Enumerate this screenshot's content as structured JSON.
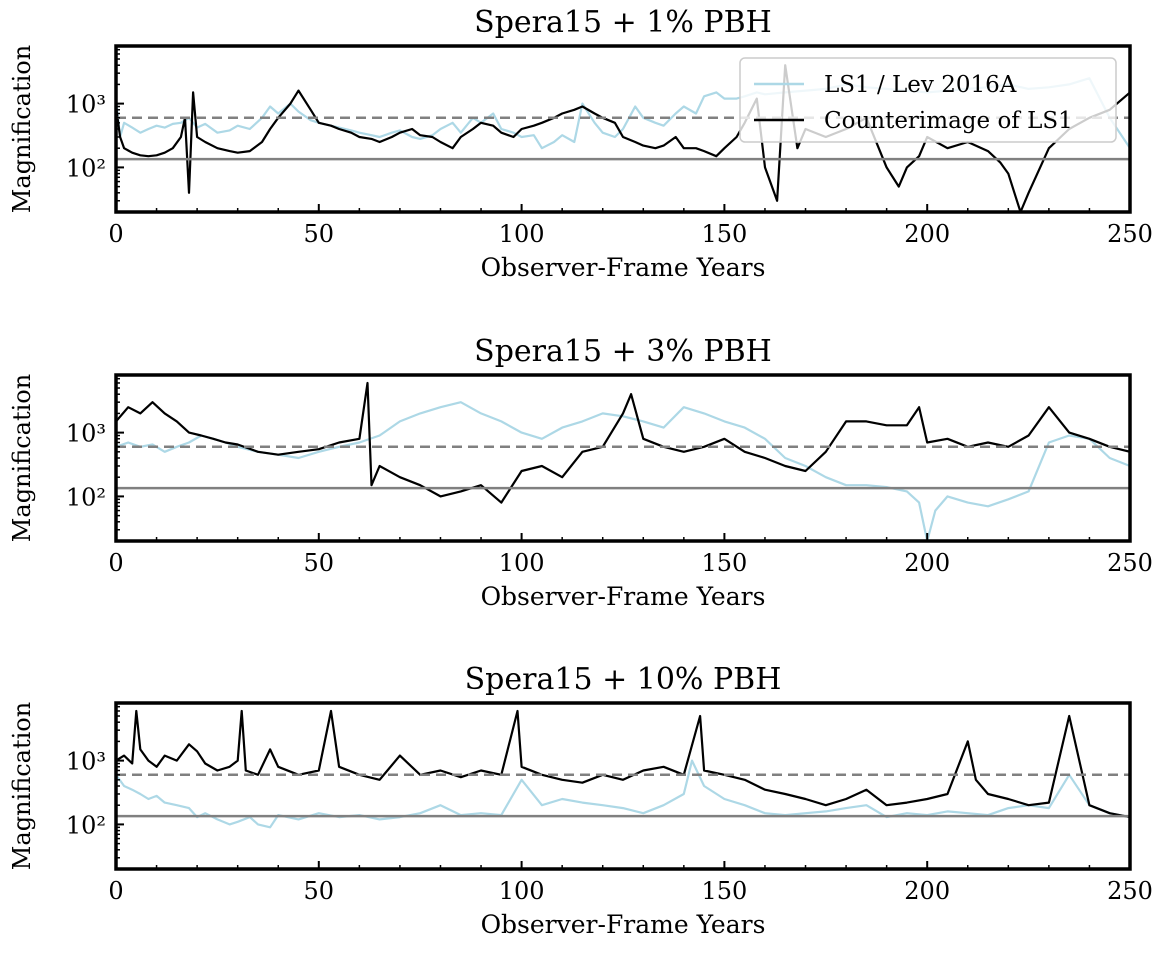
{
  "chart_data": [
    {
      "type": "line",
      "title": "Spera15 + 1% PBH",
      "xlabel": "Observer-Frame Years",
      "ylabel": "Magnification",
      "xlim": [
        0,
        250
      ],
      "ylim": [
        20,
        8000
      ],
      "yscale": "log",
      "xticks": [
        "0",
        "50",
        "100",
        "150",
        "200",
        "250"
      ],
      "yticks": [
        "10²",
        "10³"
      ],
      "hlines": [
        {
          "y": 135,
          "style": "solid",
          "color": "#808080"
        },
        {
          "y": 600,
          "style": "dashed",
          "color": "#808080"
        }
      ],
      "legend": {
        "placement": "top-right",
        "entries": [
          "LS1 / Lev 2016A",
          "Counterimage of LS1"
        ]
      },
      "series": [
        {
          "name": "LS1 / Lev 2016A",
          "color": "#add8e6",
          "x": [
            0,
            1,
            2,
            4,
            6,
            8,
            10,
            12,
            14,
            16,
            18,
            20,
            22,
            25,
            28,
            30,
            33,
            36,
            38,
            40,
            43,
            45,
            48,
            50,
            53,
            55,
            58,
            60,
            63,
            65,
            68,
            70,
            73,
            75,
            78,
            80,
            83,
            85,
            88,
            90,
            93,
            95,
            98,
            100,
            103,
            105,
            108,
            110,
            113,
            115,
            118,
            120,
            123,
            125,
            128,
            130,
            133,
            135,
            138,
            140,
            143,
            145,
            148,
            150,
            153,
            155,
            158,
            160,
            165,
            170,
            175,
            180,
            185,
            190,
            195,
            200,
            205,
            210,
            215,
            220,
            225,
            230,
            235,
            240,
            245,
            250
          ],
          "y": [
            1200,
            300,
            500,
            420,
            350,
            400,
            450,
            420,
            480,
            500,
            600,
            420,
            480,
            350,
            380,
            450,
            400,
            600,
            900,
            700,
            1000,
            750,
            550,
            500,
            450,
            420,
            380,
            350,
            320,
            300,
            350,
            380,
            300,
            280,
            320,
            400,
            500,
            350,
            600,
            500,
            700,
            400,
            350,
            300,
            320,
            200,
            250,
            320,
            250,
            1000,
            500,
            350,
            300,
            400,
            900,
            600,
            500,
            450,
            700,
            900,
            700,
            1300,
            1500,
            1200,
            1200,
            1300,
            1500,
            1400,
            1500,
            1600,
            1700,
            2000,
            1800,
            1700,
            1600,
            1500,
            1600,
            1700,
            1800,
            2000,
            1700,
            1800,
            2000,
            2500,
            600,
            200
          ]
        },
        {
          "name": "Counterimage of LS1",
          "color": "#000000",
          "x": [
            0,
            1,
            2,
            4,
            6,
            8,
            10,
            12,
            14,
            16,
            17,
            18,
            19,
            20,
            22,
            25,
            28,
            30,
            33,
            36,
            38,
            40,
            43,
            45,
            48,
            50,
            53,
            55,
            58,
            60,
            63,
            65,
            68,
            70,
            73,
            75,
            78,
            80,
            83,
            85,
            88,
            90,
            93,
            95,
            98,
            100,
            103,
            105,
            108,
            110,
            113,
            115,
            118,
            120,
            123,
            125,
            128,
            130,
            133,
            135,
            138,
            140,
            143,
            145,
            148,
            150,
            153,
            155,
            158,
            160,
            163,
            165,
            168,
            170,
            175,
            180,
            185,
            190,
            193,
            195,
            198,
            200,
            205,
            210,
            215,
            218,
            220,
            223,
            225,
            230,
            235,
            240,
            245,
            250
          ],
          "y": [
            900,
            300,
            200,
            170,
            155,
            150,
            155,
            170,
            200,
            300,
            600,
            40,
            1500,
            300,
            250,
            200,
            180,
            170,
            180,
            250,
            400,
            600,
            1000,
            1600,
            800,
            500,
            450,
            400,
            350,
            300,
            280,
            250,
            300,
            350,
            400,
            320,
            300,
            250,
            200,
            300,
            400,
            500,
            450,
            350,
            300,
            400,
            450,
            500,
            600,
            700,
            800,
            900,
            700,
            600,
            500,
            300,
            250,
            220,
            200,
            220,
            300,
            200,
            200,
            180,
            150,
            200,
            300,
            500,
            1200,
            100,
            30,
            4000,
            200,
            400,
            300,
            400,
            600,
            100,
            50,
            100,
            150,
            300,
            200,
            250,
            180,
            120,
            80,
            20,
            40,
            200,
            400,
            600,
            800,
            1500
          ]
        }
      ]
    },
    {
      "type": "line",
      "title": "Spera15 + 3% PBH",
      "xlabel": "Observer-Frame Years",
      "ylabel": "Magnification",
      "xlim": [
        0,
        250
      ],
      "ylim": [
        20,
        8000
      ],
      "yscale": "log",
      "xticks": [
        "0",
        "50",
        "100",
        "150",
        "200",
        "250"
      ],
      "yticks": [
        "10²",
        "10³"
      ],
      "hlines": [
        {
          "y": 135,
          "style": "solid",
          "color": "#808080"
        },
        {
          "y": 600,
          "style": "dashed",
          "color": "#808080"
        }
      ],
      "series": [
        {
          "name": "LS1 / Lev 2016A",
          "color": "#add8e6",
          "x": [
            0,
            3,
            6,
            9,
            12,
            15,
            18,
            21,
            24,
            27,
            30,
            35,
            40,
            45,
            50,
            55,
            60,
            65,
            70,
            75,
            80,
            85,
            90,
            95,
            100,
            105,
            110,
            115,
            120,
            125,
            130,
            135,
            140,
            145,
            150,
            155,
            160,
            165,
            170,
            175,
            180,
            185,
            190,
            195,
            198,
            200,
            202,
            205,
            210,
            215,
            220,
            225,
            230,
            235,
            240,
            245,
            250
          ],
          "y": [
            600,
            700,
            600,
            650,
            500,
            600,
            700,
            900,
            800,
            700,
            600,
            500,
            450,
            400,
            500,
            600,
            700,
            900,
            1500,
            2000,
            2500,
            3000,
            2000,
            1500,
            1000,
            800,
            1200,
            1500,
            2000,
            1800,
            1500,
            1200,
            2500,
            2000,
            1500,
            1200,
            800,
            400,
            300,
            200,
            150,
            150,
            140,
            120,
            80,
            20,
            60,
            100,
            80,
            70,
            90,
            120,
            700,
            900,
            800,
            400,
            300
          ]
        },
        {
          "name": "Counterimage of LS1",
          "color": "#000000",
          "x": [
            0,
            3,
            6,
            9,
            12,
            15,
            18,
            21,
            24,
            27,
            30,
            35,
            40,
            45,
            50,
            55,
            60,
            62,
            63,
            65,
            70,
            75,
            80,
            85,
            90,
            95,
            100,
            105,
            110,
            115,
            120,
            125,
            127,
            130,
            135,
            140,
            145,
            150,
            155,
            160,
            165,
            170,
            175,
            180,
            185,
            190,
            195,
            198,
            200,
            205,
            210,
            215,
            220,
            225,
            230,
            235,
            240,
            245,
            250
          ],
          "y": [
            1500,
            2500,
            2000,
            3000,
            2000,
            1500,
            1000,
            900,
            800,
            700,
            650,
            500,
            450,
            500,
            550,
            700,
            800,
            6000,
            150,
            300,
            200,
            150,
            100,
            120,
            150,
            80,
            250,
            300,
            200,
            500,
            600,
            2000,
            4000,
            800,
            600,
            500,
            600,
            800,
            500,
            400,
            300,
            250,
            500,
            1500,
            1500,
            1300,
            1300,
            2500,
            700,
            800,
            600,
            700,
            600,
            900,
            2500,
            1000,
            800,
            600,
            500
          ]
        }
      ]
    },
    {
      "type": "line",
      "title": "Spera15 + 10% PBH",
      "xlabel": "Observer-Frame Years",
      "ylabel": "Magnification",
      "xlim": [
        0,
        250
      ],
      "ylim": [
        20,
        8000
      ],
      "yscale": "log",
      "xticks": [
        "0",
        "50",
        "100",
        "150",
        "200",
        "250"
      ],
      "yticks": [
        "10²",
        "10³"
      ],
      "hlines": [
        {
          "y": 135,
          "style": "solid",
          "color": "#808080"
        },
        {
          "y": 600,
          "style": "dashed",
          "color": "#808080"
        }
      ],
      "series": [
        {
          "name": "LS1 / Lev 2016A",
          "color": "#add8e6",
          "x": [
            0,
            2,
            4,
            6,
            8,
            10,
            12,
            15,
            18,
            20,
            22,
            25,
            28,
            30,
            33,
            35,
            38,
            40,
            45,
            50,
            55,
            60,
            65,
            70,
            75,
            80,
            85,
            90,
            95,
            100,
            105,
            110,
            115,
            120,
            125,
            130,
            135,
            140,
            142,
            145,
            150,
            155,
            160,
            165,
            170,
            175,
            180,
            185,
            190,
            195,
            200,
            205,
            210,
            215,
            220,
            225,
            230,
            235,
            240,
            245,
            250
          ],
          "y": [
            600,
            400,
            350,
            300,
            250,
            280,
            220,
            200,
            180,
            130,
            150,
            120,
            100,
            110,
            130,
            100,
            90,
            140,
            120,
            150,
            130,
            140,
            120,
            130,
            150,
            200,
            140,
            150,
            140,
            500,
            200,
            250,
            220,
            200,
            180,
            150,
            200,
            300,
            1000,
            400,
            250,
            200,
            150,
            140,
            150,
            160,
            180,
            200,
            130,
            150,
            140,
            160,
            150,
            140,
            180,
            200,
            180,
            600,
            200,
            150,
            130
          ]
        },
        {
          "name": "Counterimage of LS1",
          "color": "#000000",
          "x": [
            0,
            2,
            4,
            5,
            6,
            8,
            10,
            12,
            15,
            18,
            20,
            22,
            25,
            28,
            30,
            31,
            32,
            35,
            38,
            40,
            45,
            50,
            53,
            55,
            60,
            65,
            70,
            75,
            80,
            85,
            90,
            95,
            99,
            100,
            105,
            110,
            115,
            120,
            125,
            130,
            135,
            140,
            144,
            145,
            150,
            155,
            160,
            165,
            170,
            175,
            180,
            185,
            190,
            195,
            200,
            205,
            210,
            212,
            215,
            220,
            225,
            230,
            235,
            240,
            245,
            250
          ],
          "y": [
            1000,
            1200,
            900,
            6000,
            1500,
            1000,
            800,
            1200,
            1000,
            1800,
            1400,
            900,
            700,
            800,
            1000,
            6000,
            700,
            600,
            1500,
            800,
            600,
            700,
            6000,
            800,
            600,
            500,
            1200,
            600,
            700,
            550,
            700,
            600,
            6000,
            800,
            600,
            500,
            450,
            600,
            500,
            700,
            800,
            600,
            5000,
            700,
            600,
            500,
            350,
            300,
            250,
            200,
            250,
            350,
            200,
            220,
            250,
            300,
            2000,
            500,
            300,
            250,
            200,
            220,
            5000,
            200,
            150,
            130
          ]
        }
      ]
    }
  ]
}
